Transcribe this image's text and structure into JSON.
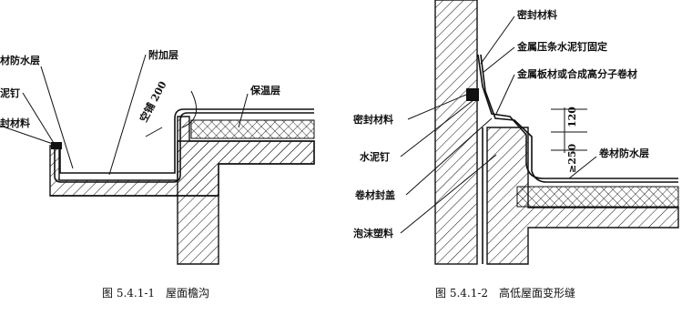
{
  "figures": [
    {
      "labels": [
        "材防水层",
        "泥钉",
        "封材料",
        "附加层",
        "空铺 200",
        "保温层"
      ],
      "caption": "图 5.4.1-1　屋面檐沟"
    },
    {
      "labels": [
        "密封材料",
        "金属压条水泥钉固定",
        "金属板材或合成高分子卷材",
        "密封材料",
        "水泥钉",
        "卷材封盖",
        "泡沫塑料",
        "120",
        "≥250",
        "卷材防水层"
      ],
      "caption": "图 5.4.1-2　高低屋面变形缝"
    }
  ]
}
